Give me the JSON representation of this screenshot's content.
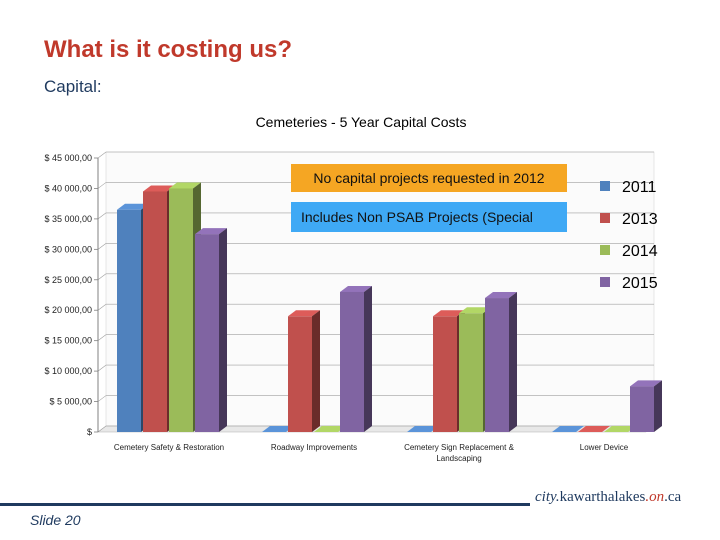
{
  "slide": {
    "title": "What is it costing us?",
    "subtitle": "Capital:",
    "slide_number": "Slide 20",
    "logo": {
      "prefix": "city.",
      "main": "kawarthalakes",
      "middle": ".on",
      "suffix": ".ca"
    }
  },
  "annotations": {
    "note1": "No capital projects requested  in 2012",
    "note2": "Includes Non PSAB Projects (Special"
  },
  "colors": {
    "2011": "#4f81bd",
    "2013": "#c0504d",
    "2014": "#9bbb59",
    "2015": "#8064a2",
    "note1_bg": "#f5a623",
    "note2_bg": "#3fa9f5",
    "title": "#c0392b"
  },
  "chart_data": {
    "type": "bar",
    "title": "Cemeteries - 5 Year Capital Costs",
    "categories": [
      "Cemetery Safety & Restoration",
      "Roadway Improvements",
      "Cemetery Sign Replacement & Landscaping",
      "Lower Device"
    ],
    "series": [
      {
        "name": "2011",
        "values": [
          36500,
          0,
          0,
          0
        ]
      },
      {
        "name": "2013",
        "values": [
          39500,
          19000,
          19000,
          0
        ]
      },
      {
        "name": "2014",
        "values": [
          40000,
          0,
          19500,
          0
        ]
      },
      {
        "name": "2015",
        "values": [
          32500,
          23000,
          22000,
          7500
        ]
      }
    ],
    "ylim": [
      0,
      45000
    ],
    "yticks": [
      0,
      5000,
      10000,
      15000,
      20000,
      25000,
      30000,
      35000,
      40000,
      45000
    ],
    "ytick_labels": [
      "$",
      "$ 5 000,00",
      "$ 10 000,00",
      "$ 15 000,00",
      "$ 20 000,00",
      "$ 25 000,00",
      "$ 30 000,00",
      "$ 35 000,00",
      "$ 40 000,00",
      "$ 45 000,00"
    ],
    "legend": [
      "2011",
      "2013",
      "2014",
      "2015"
    ],
    "legend_position": "right",
    "grid": true,
    "xlabel": "",
    "ylabel": ""
  }
}
